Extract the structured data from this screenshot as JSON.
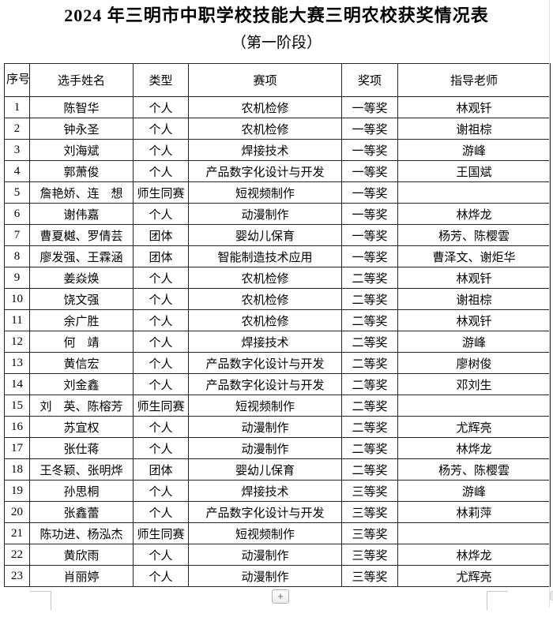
{
  "page": {
    "title": "2024 年三明市中职学校技能大赛三明农校获奖情况表",
    "subtitle": "（第一阶段）"
  },
  "controls": {
    "insert_button_label": "+"
  },
  "colors": {
    "table_border": "#262626",
    "crop_mark": "#c4c4c4",
    "text": "#000000"
  },
  "table": {
    "headers": [
      "序号",
      "选手姓名",
      "类型",
      "赛项",
      "奖项",
      "指导老师"
    ],
    "rows": [
      {
        "no": "1",
        "name": "陈智华",
        "type": "个人",
        "event": "农机检修",
        "award": "一等奖",
        "teacher": "林观钎"
      },
      {
        "no": "2",
        "name": "钟永圣",
        "type": "个人",
        "event": "农机检修",
        "award": "一等奖",
        "teacher": "谢祖棕"
      },
      {
        "no": "3",
        "name": "刘海斌",
        "type": "个人",
        "event": "焊接技术",
        "award": "一等奖",
        "teacher": "游峰"
      },
      {
        "no": "4",
        "name": "郭萧俊",
        "type": "个人",
        "event": "产品数字化设计与开发",
        "award": "一等奖",
        "teacher": "王国斌"
      },
      {
        "no": "5",
        "name": "詹艳娇、连　想",
        "type": "师生同赛",
        "event": "短视频制作",
        "award": "一等奖",
        "teacher": ""
      },
      {
        "no": "6",
        "name": "谢伟嘉",
        "type": "个人",
        "event": "动漫制作",
        "award": "一等奖",
        "teacher": "林烨龙"
      },
      {
        "no": "7",
        "name": "曹夏樾、罗倩芸",
        "type": "团体",
        "event": "婴幼儿保育",
        "award": "一等奖",
        "teacher": "杨芳、陈樱雲"
      },
      {
        "no": "8",
        "name": "廖发强、王霖涵",
        "type": "团体",
        "event": "智能制造技术应用",
        "award": "一等奖",
        "teacher": "曹泽文、谢炬华"
      },
      {
        "no": "9",
        "name": "姜焱焕",
        "type": "个人",
        "event": "农机检修",
        "award": "二等奖",
        "teacher": "林观钎"
      },
      {
        "no": "10",
        "name": "饶文强",
        "type": "个人",
        "event": "农机检修",
        "award": "二等奖",
        "teacher": "谢祖棕"
      },
      {
        "no": "11",
        "name": "余广胜",
        "type": "个人",
        "event": "农机检修",
        "award": "二等奖",
        "teacher": "林观钎"
      },
      {
        "no": "12",
        "name": "何　靖",
        "type": "个人",
        "event": "焊接技术",
        "award": "二等奖",
        "teacher": "游峰"
      },
      {
        "no": "13",
        "name": "黄信宏",
        "type": "个人",
        "event": "产品数字化设计与开发",
        "award": "二等奖",
        "teacher": "廖树俊"
      },
      {
        "no": "14",
        "name": "刘金鑫",
        "type": "个人",
        "event": "产品数字化设计与开发",
        "award": "二等奖",
        "teacher": "邓刘生"
      },
      {
        "no": "15",
        "name": "刘　英、陈榕芳",
        "type": "师生同赛",
        "event": "短视频制作",
        "award": "二等奖",
        "teacher": ""
      },
      {
        "no": "16",
        "name": "苏宜权",
        "type": "个人",
        "event": "动漫制作",
        "award": "二等奖",
        "teacher": "尤辉亮"
      },
      {
        "no": "17",
        "name": "张仕蒋",
        "type": "个人",
        "event": "动漫制作",
        "award": "二等奖",
        "teacher": "林烨龙"
      },
      {
        "no": "18",
        "name": "王冬颖、张明烨",
        "type": "团体",
        "event": "婴幼儿保育",
        "award": "二等奖",
        "teacher": "杨芳、陈樱雲"
      },
      {
        "no": "19",
        "name": "孙思桐",
        "type": "个人",
        "event": "焊接技术",
        "award": "三等奖",
        "teacher": "游峰"
      },
      {
        "no": "20",
        "name": "张鑫蕾",
        "type": "个人",
        "event": "产品数字化设计与开发",
        "award": "三等奖",
        "teacher": "林莉萍"
      },
      {
        "no": "21",
        "name": "陈功进、杨泓杰",
        "type": "师生同赛",
        "event": "短视频制作",
        "award": "三等奖",
        "teacher": ""
      },
      {
        "no": "22",
        "name": "黄欣雨",
        "type": "个人",
        "event": "动漫制作",
        "award": "三等奖",
        "teacher": "林烨龙"
      },
      {
        "no": "23",
        "name": "肖丽婷",
        "type": "个人",
        "event": "动漫制作",
        "award": "三等奖",
        "teacher": "尤辉亮"
      }
    ]
  }
}
